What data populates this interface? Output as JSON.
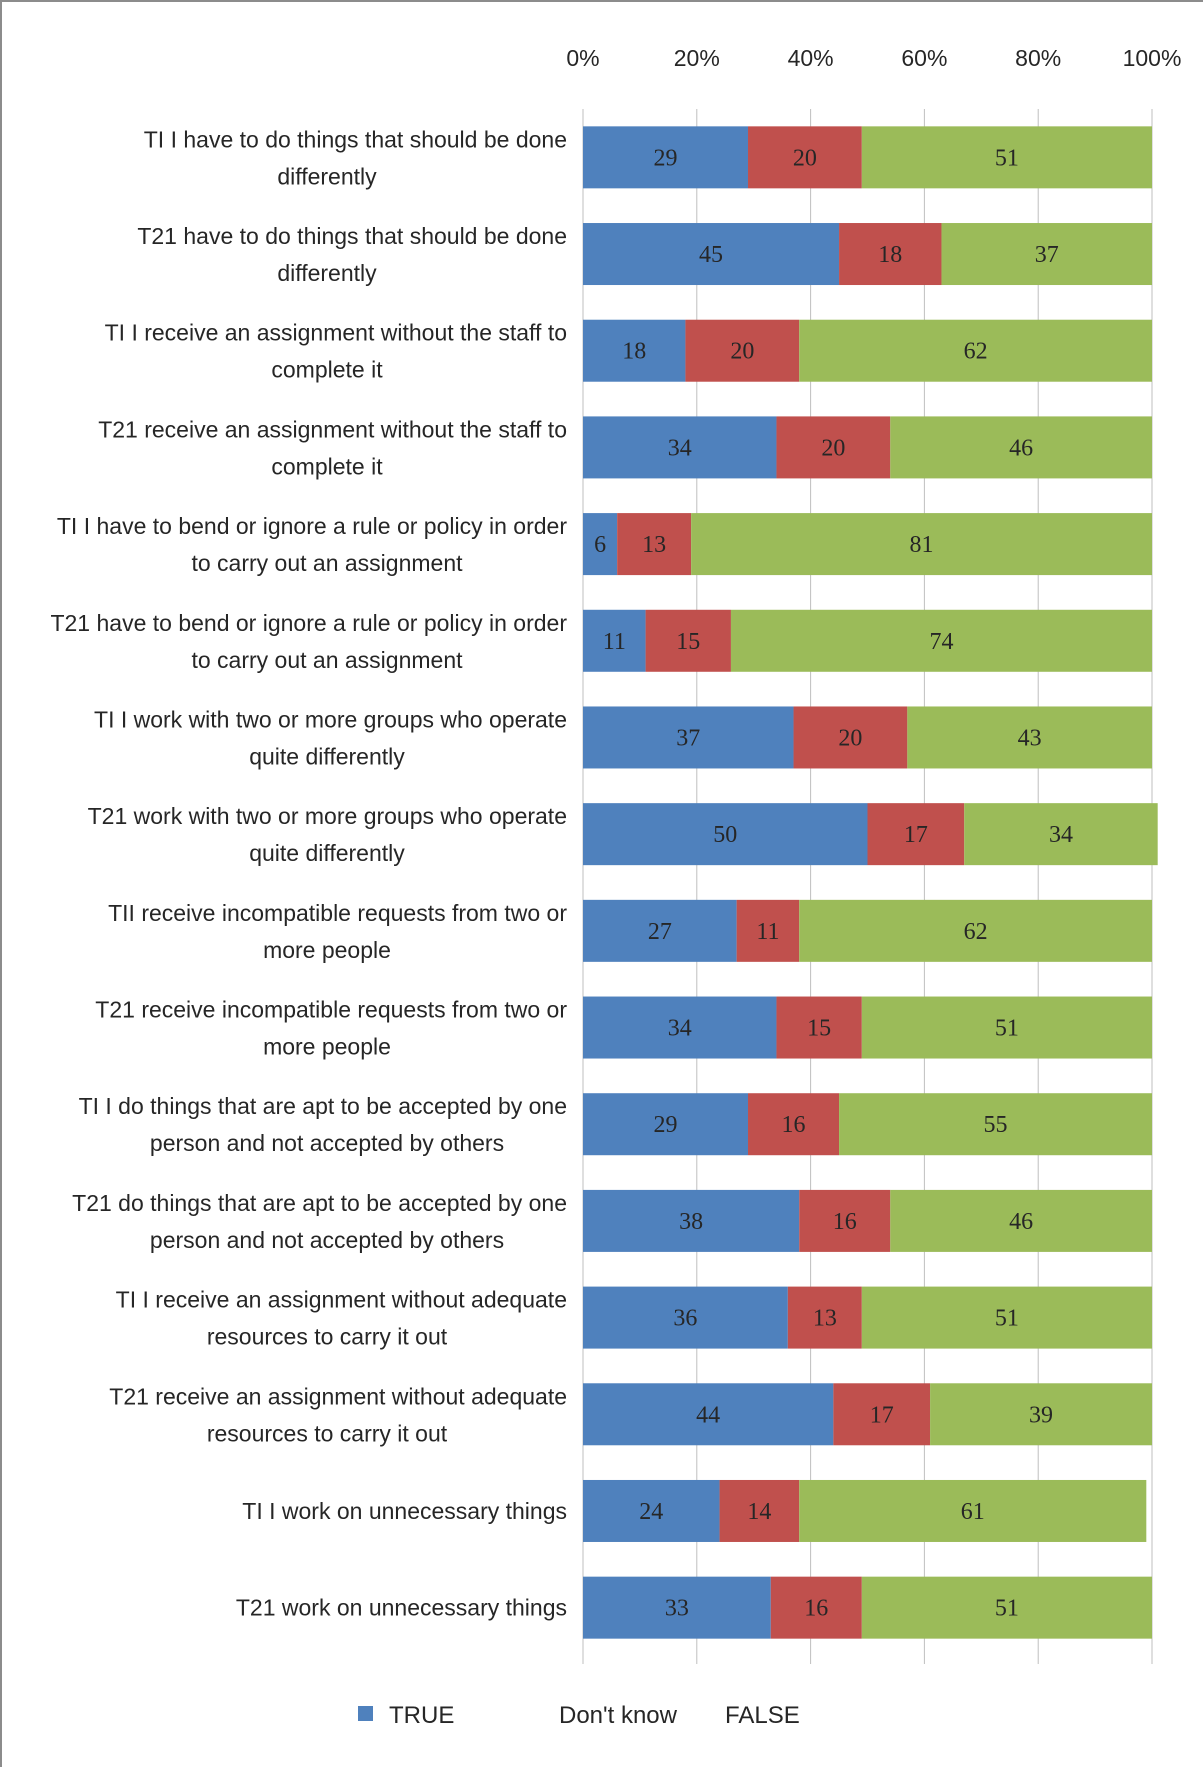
{
  "chart_data": {
    "type": "bar",
    "orientation": "horizontal",
    "stacked": true,
    "percent_axis": true,
    "xlim": [
      0,
      100
    ],
    "xticks": [
      "0%",
      "20%",
      "40%",
      "60%",
      "80%",
      "100%"
    ],
    "grid": true,
    "legend_position": "bottom",
    "categories": [
      [
        "TI I have to do things that should be done",
        "differently"
      ],
      [
        "T21 have to do things that should be done",
        "differently"
      ],
      [
        "TI I receive an assignment without the staff to",
        "complete it"
      ],
      [
        "T21 receive an assignment without the staff to",
        "complete it"
      ],
      [
        "TI I have to bend or ignore a rule or policy in order",
        "to carry out an assignment"
      ],
      [
        "T21 have to bend or ignore a rule or policy in order",
        "to carry out an assignment"
      ],
      [
        "TI I work with two or more groups who operate",
        "quite differently"
      ],
      [
        "T21 work with two or more groups who operate",
        "quite differently"
      ],
      [
        "TII receive incompatible requests from two or",
        "more people"
      ],
      [
        "T21 receive incompatible requests from two or",
        "more people"
      ],
      [
        "TI I do things that are apt to be accepted by one",
        "person and not accepted by others"
      ],
      [
        "T21 do things that are apt to be accepted by one",
        "person and not accepted by others"
      ],
      [
        "TI I receive an assignment without adequate",
        "resources to carry it out"
      ],
      [
        "T21 receive an assignment without adequate",
        "resources to carry it out"
      ],
      [
        "TI I work on unnecessary things"
      ],
      [
        "T21 work on unnecessary things"
      ]
    ],
    "series": [
      {
        "name": "TRUE",
        "color": "#4f81bd",
        "values": [
          29,
          45,
          18,
          34,
          6,
          11,
          37,
          50,
          27,
          34,
          29,
          38,
          36,
          44,
          24,
          33
        ]
      },
      {
        "name": "Don't know",
        "color": "#c0504d",
        "values": [
          20,
          18,
          20,
          20,
          13,
          15,
          20,
          17,
          11,
          15,
          16,
          16,
          13,
          17,
          14,
          16
        ]
      },
      {
        "name": "FALSE",
        "color": "#9bbb59",
        "values": [
          51,
          37,
          62,
          46,
          81,
          74,
          43,
          34,
          62,
          51,
          55,
          46,
          51,
          39,
          61,
          51
        ]
      }
    ],
    "legend": [
      {
        "label": "TRUE",
        "color": "#4f81bd",
        "show_marker": true
      },
      {
        "label": "Don't know",
        "color": "#c0504d",
        "show_marker": false
      },
      {
        "label": "FALSE",
        "color": "#9bbb59",
        "show_marker": false
      }
    ]
  }
}
